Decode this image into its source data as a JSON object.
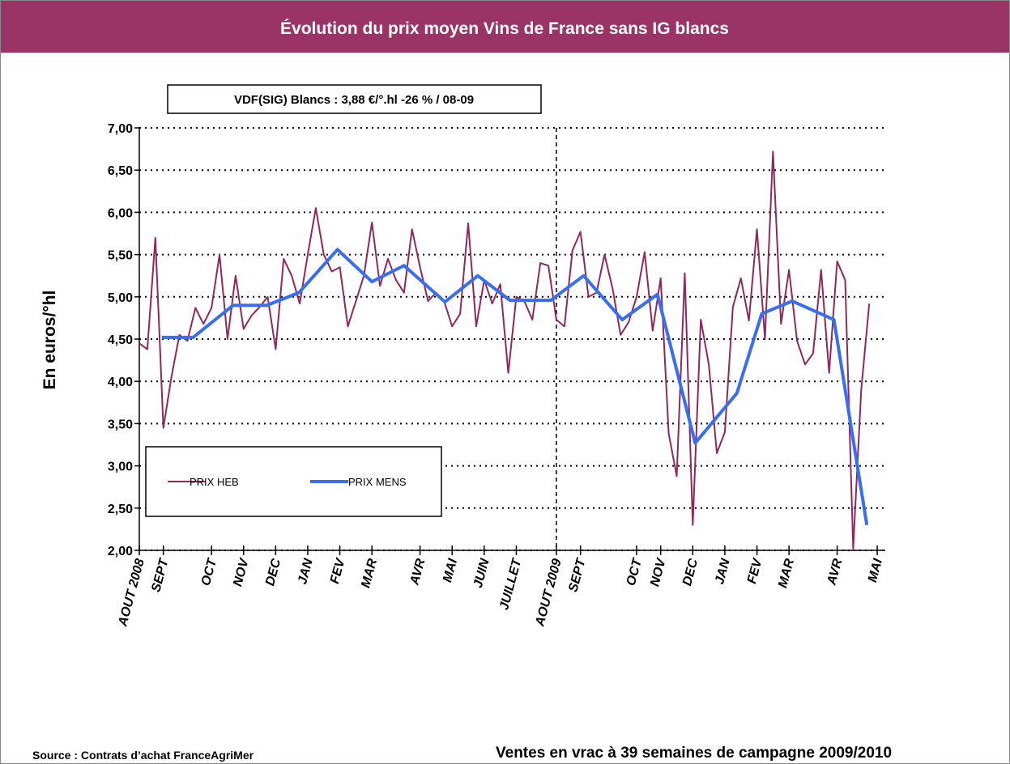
{
  "chart_data": {
    "type": "line",
    "title": "Évolution du prix moyen Vins de France sans IG blancs",
    "annotation": "VDF(SIG) Blancs : 3,88 €/°.hl -26 % / 08-09",
    "ylabel": "En euros/°hl",
    "source": "Source : Contrats d’achat FranceAgriMer",
    "footnote": "Ventes en vrac à 39 semaines de campagne 2009/2010",
    "xlim": [
      0,
      93
    ],
    "ylim": [
      2,
      7
    ],
    "yticks": [
      {
        "value": 2,
        "label": "2,00"
      },
      {
        "value": 2.5,
        "label": "2,50"
      },
      {
        "value": 3,
        "label": "3,00"
      },
      {
        "value": 3.5,
        "label": "3,50"
      },
      {
        "value": 4,
        "label": "4,00"
      },
      {
        "value": 4.5,
        "label": "4,50"
      },
      {
        "value": 5,
        "label": "5,00"
      },
      {
        "value": 5.5,
        "label": "5,50"
      },
      {
        "value": 6,
        "label": "6,00"
      },
      {
        "value": 6.5,
        "label": "6,50"
      },
      {
        "value": 7,
        "label": "7,00"
      }
    ],
    "xticks": [
      {
        "value": 0,
        "label": "AOUT 2008"
      },
      {
        "value": 3,
        "label": "SEPT"
      },
      {
        "value": 9,
        "label": "OCT"
      },
      {
        "value": 13,
        "label": "NOV"
      },
      {
        "value": 17,
        "label": "DEC"
      },
      {
        "value": 21,
        "label": "JAN"
      },
      {
        "value": 25,
        "label": "FEV"
      },
      {
        "value": 29,
        "label": "MAR"
      },
      {
        "value": 35,
        "label": "AVR"
      },
      {
        "value": 39,
        "label": "MAI"
      },
      {
        "value": 43,
        "label": "JUIN"
      },
      {
        "value": 47,
        "label": "JUILLET"
      },
      {
        "value": 52,
        "label": "AOUT 2009"
      },
      {
        "value": 55,
        "label": "SEPT"
      },
      {
        "value": 62,
        "label": "OCT"
      },
      {
        "value": 65,
        "label": "NOV"
      },
      {
        "value": 69,
        "label": "DEC"
      },
      {
        "value": 73,
        "label": "JAN"
      },
      {
        "value": 77,
        "label": "FEV"
      },
      {
        "value": 81,
        "label": "MAR"
      },
      {
        "value": 87,
        "label": "AVR"
      },
      {
        "value": 92,
        "label": "MAI"
      }
    ],
    "vline": 52,
    "grid": true,
    "series": [
      {
        "name": "PRIX HEB",
        "color": "#8b2a5e",
        "width": 2,
        "x": [
          0,
          1,
          2,
          3,
          4,
          5,
          6,
          7,
          8,
          9,
          10,
          11,
          12,
          13,
          14,
          15,
          16,
          17,
          18,
          19,
          20,
          21,
          22,
          23,
          24,
          25,
          26,
          27,
          28,
          29,
          30,
          31,
          32,
          33,
          34,
          35,
          36,
          37,
          38,
          39,
          40,
          41,
          42,
          43,
          44,
          45,
          46,
          47,
          48,
          49,
          50,
          51,
          52,
          53,
          54,
          55,
          56,
          57,
          58,
          59,
          60,
          61,
          62,
          63,
          64,
          65,
          66,
          67,
          68,
          69,
          70,
          71,
          72,
          73,
          74,
          75,
          76,
          77,
          78,
          79,
          80,
          81,
          82,
          83,
          84,
          85,
          86,
          87,
          88,
          89,
          90,
          91
        ],
        "values": [
          4.45,
          4.38,
          5.7,
          3.45,
          4.05,
          4.55,
          4.48,
          4.87,
          4.68,
          4.87,
          5.5,
          4.5,
          5.25,
          4.62,
          4.78,
          4.88,
          5.0,
          4.38,
          5.45,
          5.25,
          4.92,
          5.5,
          6.05,
          5.5,
          5.3,
          5.35,
          4.65,
          4.95,
          5.25,
          5.88,
          5.13,
          5.45,
          5.2,
          5.05,
          5.8,
          5.35,
          4.95,
          5.05,
          4.95,
          4.65,
          4.8,
          5.87,
          4.65,
          5.2,
          4.92,
          5.15,
          4.1,
          5.0,
          4.95,
          4.73,
          5.4,
          5.37,
          4.73,
          4.65,
          5.55,
          5.77,
          5.0,
          5.05,
          5.5,
          5.1,
          4.55,
          4.7,
          5.0,
          5.53,
          4.6,
          5.22,
          3.38,
          2.88,
          5.28,
          2.3,
          4.73,
          4.2,
          3.15,
          3.4,
          4.88,
          5.22,
          4.72,
          5.8,
          4.5,
          6.72,
          4.68,
          5.32,
          4.48,
          4.2,
          4.33,
          5.32,
          4.1,
          5.42,
          5.2,
          2.02,
          3.9,
          4.92
        ]
      },
      {
        "name": "PRIX MENS",
        "color": "#3a6ef2",
        "width": 4,
        "x": [
          2.8,
          6.7,
          11.7,
          15.9,
          19.9,
          24.7,
          29,
          33,
          38.1,
          42.2,
          46.2,
          51.3,
          55.4,
          60.2,
          64.6,
          69.3,
          74.5,
          77.6,
          81.4,
          86.6,
          90.7
        ],
        "values": [
          4.52,
          4.52,
          4.9,
          4.9,
          5.05,
          5.56,
          5.18,
          5.37,
          4.94,
          5.25,
          4.96,
          4.96,
          5.25,
          4.73,
          5.03,
          3.27,
          3.86,
          4.8,
          4.95,
          4.73,
          2.3
        ]
      }
    ]
  }
}
